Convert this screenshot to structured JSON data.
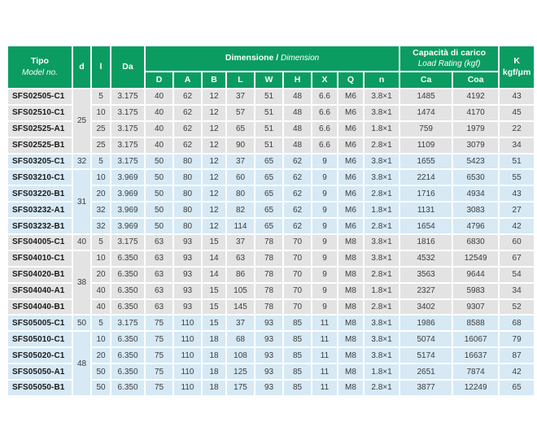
{
  "colors": {
    "header_green": "#0b9c62",
    "band_grey": "#e3e3e3",
    "band_blue": "#d6e9f5",
    "model_text": "#1a1a1a",
    "data_text": "#3c3c3c",
    "header_text": "#ffffff"
  },
  "header": {
    "tipo": "Tipo",
    "model_no": "Model no.",
    "d": "d",
    "l": "l",
    "da": "Da",
    "dimensione_bold": "Dimensione /",
    "dimension_italic": " Dimension",
    "capacita_bold": "Capacità di carico",
    "load_rating_italic": "Load Rating (kgf)",
    "k": "K",
    "k_unit": "kgf/μm",
    "sub": [
      "D",
      "A",
      "B",
      "L",
      "W",
      "H",
      "X",
      "Q",
      "n",
      "Ca",
      "Coa"
    ]
  },
  "table": {
    "rows": [
      {
        "model": "SFS02505-C1",
        "d": "25",
        "d_rowspan": 4,
        "band": "grey",
        "values": [
          "5",
          "3.175",
          "40",
          "62",
          "12",
          "37",
          "51",
          "48",
          "6.6",
          "M6",
          "3.8×1",
          "1485",
          "4192",
          "43"
        ]
      },
      {
        "model": "SFS02510-C1",
        "band": "grey",
        "values": [
          "10",
          "3.175",
          "40",
          "62",
          "12",
          "57",
          "51",
          "48",
          "6.6",
          "M6",
          "3.8×1",
          "1474",
          "4170",
          "45"
        ]
      },
      {
        "model": "SFS02525-A1",
        "band": "grey",
        "values": [
          "25",
          "3.175",
          "40",
          "62",
          "12",
          "65",
          "51",
          "48",
          "6.6",
          "M6",
          "1.8×1",
          "759",
          "1979",
          "22"
        ]
      },
      {
        "model": "SFS02525-B1",
        "band": "grey",
        "values": [
          "25",
          "3.175",
          "40",
          "62",
          "12",
          "90",
          "51",
          "48",
          "6.6",
          "M6",
          "2.8×1",
          "1109",
          "3079",
          "34"
        ]
      },
      {
        "model": "SFS03205-C1",
        "d": "32",
        "d_rowspan": 1,
        "band": "blue",
        "values": [
          "5",
          "3.175",
          "50",
          "80",
          "12",
          "37",
          "65",
          "62",
          "9",
          "M6",
          "3.8×1",
          "1655",
          "5423",
          "51"
        ]
      },
      {
        "model": "SFS03210-C1",
        "d": "31",
        "d_rowspan": 4,
        "band": "blue",
        "values": [
          "10",
          "3.969",
          "50",
          "80",
          "12",
          "60",
          "65",
          "62",
          "9",
          "M6",
          "3.8×1",
          "2214",
          "6530",
          "55"
        ]
      },
      {
        "model": "SFS03220-B1",
        "band": "blue",
        "values": [
          "20",
          "3.969",
          "50",
          "80",
          "12",
          "80",
          "65",
          "62",
          "9",
          "M6",
          "2.8×1",
          "1716",
          "4934",
          "43"
        ]
      },
      {
        "model": "SFS03232-A1",
        "band": "blue",
        "values": [
          "32",
          "3.969",
          "50",
          "80",
          "12",
          "82",
          "65",
          "62",
          "9",
          "M6",
          "1.8×1",
          "1131",
          "3083",
          "27"
        ]
      },
      {
        "model": "SFS03232-B1",
        "band": "blue",
        "values": [
          "32",
          "3.969",
          "50",
          "80",
          "12",
          "114",
          "65",
          "62",
          "9",
          "M6",
          "2.8×1",
          "1654",
          "4796",
          "42"
        ]
      },
      {
        "model": "SFS04005-C1",
        "d": "40",
        "d_rowspan": 1,
        "band": "grey",
        "values": [
          "5",
          "3.175",
          "63",
          "93",
          "15",
          "37",
          "78",
          "70",
          "9",
          "M8",
          "3.8×1",
          "1816",
          "6830",
          "60"
        ]
      },
      {
        "model": "SFS04010-C1",
        "d": "38",
        "d_rowspan": 4,
        "band": "grey",
        "values": [
          "10",
          "6.350",
          "63",
          "93",
          "14",
          "63",
          "78",
          "70",
          "9",
          "M8",
          "3.8×1",
          "4532",
          "12549",
          "67"
        ]
      },
      {
        "model": "SFS04020-B1",
        "band": "grey",
        "values": [
          "20",
          "6.350",
          "63",
          "93",
          "14",
          "86",
          "78",
          "70",
          "9",
          "M8",
          "2.8×1",
          "3563",
          "9644",
          "54"
        ]
      },
      {
        "model": "SFS04040-A1",
        "band": "grey",
        "values": [
          "40",
          "6.350",
          "63",
          "93",
          "15",
          "105",
          "78",
          "70",
          "9",
          "M8",
          "1.8×1",
          "2327",
          "5983",
          "34"
        ]
      },
      {
        "model": "SFS04040-B1",
        "band": "grey",
        "values": [
          "40",
          "6.350",
          "63",
          "93",
          "15",
          "145",
          "78",
          "70",
          "9",
          "M8",
          "2.8×1",
          "3402",
          "9307",
          "52"
        ]
      },
      {
        "model": "SFS05005-C1",
        "d": "50",
        "d_rowspan": 1,
        "band": "blue",
        "values": [
          "5",
          "3.175",
          "75",
          "110",
          "15",
          "37",
          "93",
          "85",
          "11",
          "M8",
          "3.8×1",
          "1986",
          "8588",
          "68"
        ]
      },
      {
        "model": "SFS05010-C1",
        "d": "48",
        "d_rowspan": 4,
        "band": "blue",
        "values": [
          "10",
          "6.350",
          "75",
          "110",
          "18",
          "68",
          "93",
          "85",
          "11",
          "M8",
          "3.8×1",
          "5074",
          "16067",
          "79"
        ]
      },
      {
        "model": "SFS05020-C1",
        "band": "blue",
        "values": [
          "20",
          "6.350",
          "75",
          "110",
          "18",
          "108",
          "93",
          "85",
          "11",
          "M8",
          "3.8×1",
          "5174",
          "16637",
          "87"
        ]
      },
      {
        "model": "SFS05050-A1",
        "band": "blue",
        "values": [
          "50",
          "6.350",
          "75",
          "110",
          "18",
          "125",
          "93",
          "85",
          "11",
          "M8",
          "1.8×1",
          "2651",
          "7874",
          "42"
        ]
      },
      {
        "model": "SFS05050-B1",
        "band": "blue",
        "values": [
          "50",
          "6.350",
          "75",
          "110",
          "18",
          "175",
          "93",
          "85",
          "11",
          "M8",
          "2.8×1",
          "3877",
          "12249",
          "65"
        ]
      }
    ]
  }
}
